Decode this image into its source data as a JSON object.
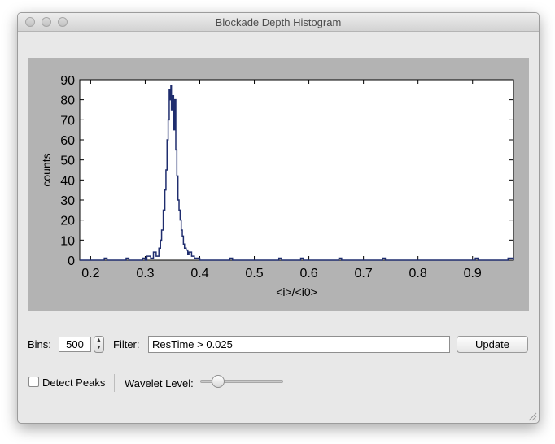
{
  "window": {
    "title": "Blockade Depth Histogram"
  },
  "controls": {
    "bins_label": "Bins:",
    "bins_value": "500",
    "filter_label": "Filter:",
    "filter_value": "ResTime > 0.025",
    "update_label": "Update",
    "detect_peaks_label": "Detect Peaks",
    "detect_peaks_checked": false,
    "wavelet_label": "Wavelet Level:",
    "wavelet_level": 0.2
  },
  "chart_data": {
    "type": "line",
    "xlabel": "<i>/<i0>",
    "ylabel": "counts",
    "xlim": [
      0.18,
      0.975
    ],
    "ylim": [
      0,
      90
    ],
    "xticks": [
      0.2,
      0.3,
      0.4,
      0.5,
      0.6,
      0.7,
      0.8,
      0.9
    ],
    "yticks": [
      0,
      10,
      20,
      30,
      40,
      50,
      60,
      70,
      80,
      90
    ],
    "grid": false,
    "series": [
      {
        "color": "#1f2d6e",
        "x": [
          0.18,
          0.22,
          0.225,
          0.23,
          0.26,
          0.265,
          0.27,
          0.29,
          0.295,
          0.3,
          0.303,
          0.31,
          0.315,
          0.32,
          0.325,
          0.328,
          0.33,
          0.333,
          0.336,
          0.338,
          0.34,
          0.342,
          0.344,
          0.346,
          0.347,
          0.348,
          0.35,
          0.352,
          0.354,
          0.356,
          0.358,
          0.36,
          0.362,
          0.364,
          0.366,
          0.368,
          0.37,
          0.372,
          0.375,
          0.378,
          0.38,
          0.385,
          0.39,
          0.395,
          0.4,
          0.45,
          0.455,
          0.46,
          0.54,
          0.545,
          0.55,
          0.58,
          0.585,
          0.59,
          0.65,
          0.655,
          0.66,
          0.73,
          0.735,
          0.74,
          0.9,
          0.905,
          0.91,
          0.96,
          0.965,
          0.975
        ],
        "y": [
          0,
          0,
          1,
          0,
          0,
          1,
          0,
          0,
          1,
          0,
          2,
          1,
          4,
          2,
          6,
          10,
          15,
          25,
          35,
          45,
          60,
          70,
          85,
          80,
          87,
          75,
          82,
          65,
          80,
          55,
          42,
          30,
          25,
          20,
          15,
          12,
          8,
          6,
          5,
          3,
          4,
          2,
          1,
          1,
          0,
          0,
          1,
          0,
          0,
          1,
          0,
          0,
          1,
          0,
          0,
          1,
          0,
          0,
          1,
          0,
          0,
          1,
          0,
          0,
          1,
          0
        ]
      }
    ]
  }
}
